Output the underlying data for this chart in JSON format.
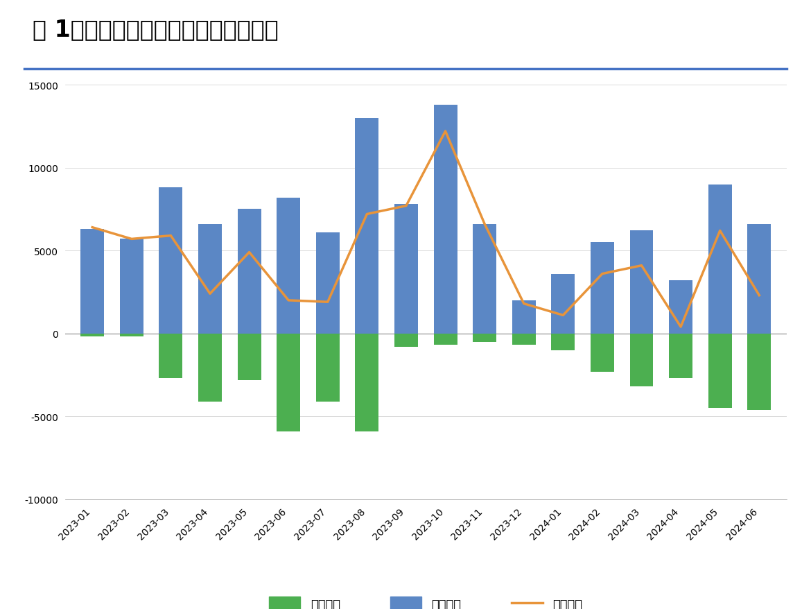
{
  "title": "图 1：地方债发行与偿还情况（亿元）",
  "categories": [
    "2023-01",
    "2023-02",
    "2023-03",
    "2023-04",
    "2023-05",
    "2023-06",
    "2023-07",
    "2023-08",
    "2023-09",
    "2023-10",
    "2023-11",
    "2023-12",
    "2024-01",
    "2024-02",
    "2024-03",
    "2024-04",
    "2024-05",
    "2024-06"
  ],
  "issuance": [
    6300,
    5700,
    8800,
    6600,
    7500,
    8200,
    6100,
    13000,
    7800,
    13800,
    6600,
    2000,
    3600,
    5500,
    6200,
    3200,
    9000,
    6600
  ],
  "repayment": [
    -200,
    -200,
    -2700,
    -4100,
    -2800,
    -5900,
    -4100,
    -5900,
    -800,
    -700,
    -500,
    -700,
    -1000,
    -2300,
    -3200,
    -2700,
    -4500,
    -4600
  ],
  "net_financing": [
    6400,
    5700,
    5900,
    2400,
    4900,
    2000,
    1900,
    7200,
    7700,
    12200,
    6600,
    1800,
    1100,
    3600,
    4100,
    400,
    6200,
    2300
  ],
  "bar_color_issuance": "#5B87C5",
  "bar_color_repayment": "#4CAF50",
  "line_color": "#E8943A",
  "ylim": [
    -10000,
    15000
  ],
  "yticks": [
    -10000,
    -5000,
    0,
    5000,
    10000,
    15000
  ],
  "legend_labels": [
    "总偿还量",
    "总发行量",
    "净融资额"
  ],
  "background_color": "#ffffff",
  "title_fontsize": 24,
  "axis_fontsize": 10,
  "legend_fontsize": 13
}
